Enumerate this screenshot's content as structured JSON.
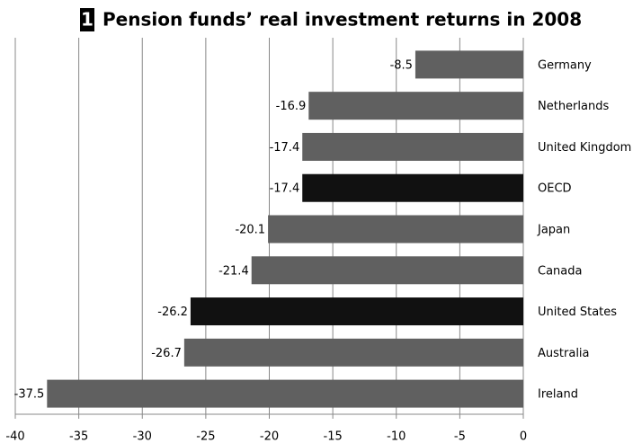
{
  "chart_data": {
    "type": "hbar",
    "badge": "1",
    "title": "Pension funds’ real investment returns in 2008",
    "categories": [
      "Germany",
      "Netherlands",
      "United Kingdom",
      "OECD",
      "Japan",
      "Canada",
      "United States",
      "Australia",
      "Ireland"
    ],
    "values": [
      -8.5,
      -16.9,
      -17.4,
      -17.4,
      -20.1,
      -21.4,
      -26.2,
      -26.7,
      -37.5
    ],
    "colors": [
      "#606060",
      "#606060",
      "#606060",
      "#111111",
      "#606060",
      "#606060",
      "#111111",
      "#606060",
      "#606060"
    ],
    "xlim": [
      -40,
      0
    ],
    "xticks": [
      -40,
      -35,
      -30,
      -25,
      -20,
      -15,
      -10,
      -5,
      0
    ],
    "grid": true
  }
}
